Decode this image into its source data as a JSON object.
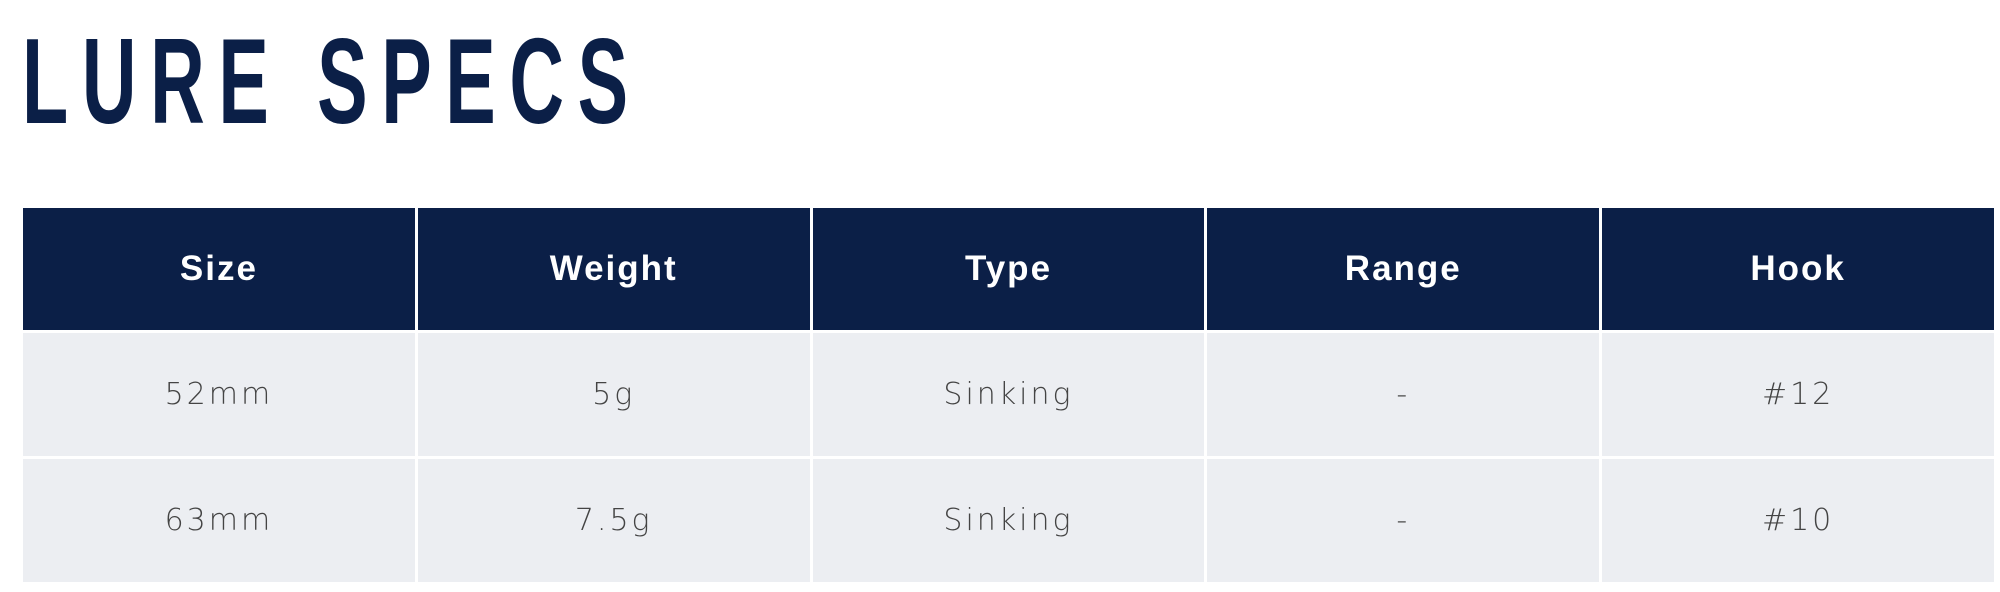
{
  "title": "LURE SPECS",
  "colors": {
    "header_bg": "#0b1f47",
    "row_bg": "#eceef2",
    "title": "#0b1f47"
  },
  "table": {
    "headers": [
      "Size",
      "Weight",
      "Type",
      "Range",
      "Hook"
    ],
    "rows": [
      [
        "52mm",
        "5g",
        "Sinking",
        "-",
        "#12"
      ],
      [
        "63mm",
        "7.5g",
        "Sinking",
        "-",
        "#10"
      ]
    ]
  }
}
